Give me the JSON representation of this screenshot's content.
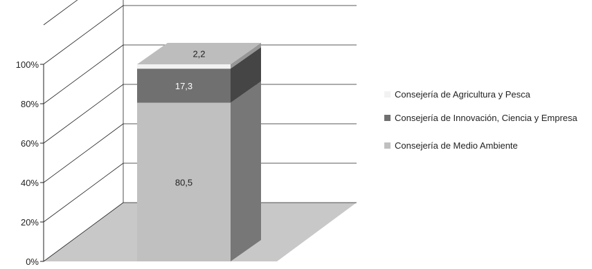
{
  "chart_data": {
    "type": "bar",
    "stacked": true,
    "three_d": true,
    "percent_axis": true,
    "categories": [
      ""
    ],
    "series": [
      {
        "name": "Consejería de Medio Ambiente",
        "values": [
          80.5
        ],
        "color": "#c0c0c0",
        "label": "80,5"
      },
      {
        "name": "Consejería de Innovación, Ciencia y Empresa",
        "values": [
          17.3
        ],
        "color": "#707070",
        "label": "17,3"
      },
      {
        "name": "Consejería de Agricultura y Pesca",
        "values": [
          2.2
        ],
        "color": "#f2f2f2",
        "label": "2,2"
      }
    ],
    "yticks": [
      "0%",
      "20%",
      "40%",
      "60%",
      "80%",
      "100%"
    ],
    "ylim": [
      0,
      100
    ],
    "grid": true,
    "legend_position": "right",
    "title": "",
    "xlabel": "",
    "ylabel": ""
  },
  "legend_items": [
    {
      "label": "Consejería de Agricultura y Pesca",
      "color": "#f2f2f2"
    },
    {
      "label": "Consejería de Innovación, Ciencia y Empresa",
      "color": "#707070"
    },
    {
      "label": "Consejería de Medio Ambiente",
      "color": "#c0c0c0"
    }
  ]
}
